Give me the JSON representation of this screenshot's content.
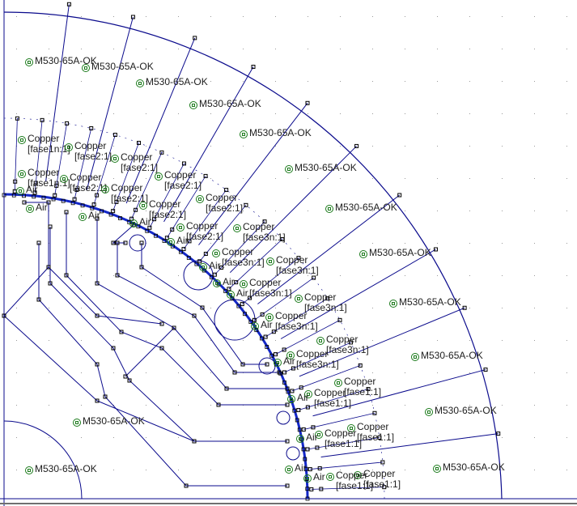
{
  "colors": {
    "boundary": "#0a0a8c",
    "interface": "#1428c8",
    "node": "#000000",
    "label_marker": "#1a7a1a",
    "background": "#ffffff",
    "grid_dot": "#9a9a9a"
  },
  "block_labels": [
    {
      "id": "l1",
      "text": "M530-65A-OK"
    },
    {
      "id": "l2",
      "text": "M530-65A-OK"
    },
    {
      "id": "l3",
      "text": "M530-65A-OK"
    },
    {
      "id": "l4",
      "text": "M530-65A-OK"
    },
    {
      "id": "l5",
      "text": "M530-65A-OK"
    },
    {
      "id": "l6",
      "text": "M530-65A-OK"
    },
    {
      "id": "l7",
      "text": "M530-65A-OK"
    },
    {
      "id": "l8",
      "text": "M530-65A-OK"
    },
    {
      "id": "l9",
      "text": "M530-65A-OK"
    },
    {
      "id": "l10",
      "text": "M530-65A-OK"
    },
    {
      "id": "l11",
      "text": "M530-65A-OK"
    },
    {
      "id": "l12",
      "text": "M530-65A-OK"
    },
    {
      "id": "l13",
      "text": "M530-65A-OK"
    },
    {
      "id": "l14",
      "text": "M530-65A-OK"
    },
    {
      "id": "c1",
      "text": "Copper\n[fase1n:1]"
    },
    {
      "id": "c2",
      "text": "Copper\n[fase2:1]"
    },
    {
      "id": "c3",
      "text": "Copper\n[fase2:1]"
    },
    {
      "id": "c4",
      "text": "Copper\n[fase1n:1]"
    },
    {
      "id": "c5",
      "text": "Copper\n[fase2:1]"
    },
    {
      "id": "c6",
      "text": "Copper\n[fase2:1]"
    },
    {
      "id": "c7",
      "text": "Copper\n[fase2:1]"
    },
    {
      "id": "c8",
      "text": "Copper\n[fase2:1]"
    },
    {
      "id": "c9",
      "text": "Copper\n[fase2:1]"
    },
    {
      "id": "c10",
      "text": "Copper\n[fase2:1]"
    },
    {
      "id": "c11",
      "text": "Copper\n[fase3n:1]"
    },
    {
      "id": "c12",
      "text": "Copper\n[fase3n:1]"
    },
    {
      "id": "c13",
      "text": "Copper\n[fase3n:1]"
    },
    {
      "id": "c14",
      "text": "Copper\n[fase3n:1]"
    },
    {
      "id": "c15",
      "text": "Copper\n[fase3n:1]"
    },
    {
      "id": "c16",
      "text": "Copper\n[fase3n:1]"
    },
    {
      "id": "c17",
      "text": "Copper\n[fase3n:1]"
    },
    {
      "id": "c18",
      "text": "Copper\n[fase3n:1]"
    },
    {
      "id": "c19",
      "text": "Copper\n[fase1:1]"
    },
    {
      "id": "c20",
      "text": "Copper\n[fase1:1]"
    },
    {
      "id": "c21",
      "text": "Copper\n[fase1:1]"
    },
    {
      "id": "c22",
      "text": "Copper\n[fase1:1]"
    },
    {
      "id": "c23",
      "text": "Copper\n[fase1:1]"
    },
    {
      "id": "c24",
      "text": "Copper\n[fase1:1]"
    },
    {
      "id": "a1",
      "text": "Air"
    },
    {
      "id": "a2",
      "text": "Air"
    },
    {
      "id": "a3",
      "text": "Air"
    },
    {
      "id": "a4",
      "text": "Air"
    },
    {
      "id": "a5",
      "text": "Air"
    },
    {
      "id": "a6",
      "text": "Air"
    },
    {
      "id": "a7",
      "text": "Air"
    },
    {
      "id": "a8",
      "text": "Air"
    },
    {
      "id": "a9",
      "text": "Air"
    },
    {
      "id": "a10",
      "text": "Air"
    },
    {
      "id": "a11",
      "text": "Air"
    },
    {
      "id": "a12",
      "text": "Air"
    },
    {
      "id": "a13",
      "text": "Air"
    },
    {
      "id": "a14",
      "text": "Air"
    }
  ]
}
